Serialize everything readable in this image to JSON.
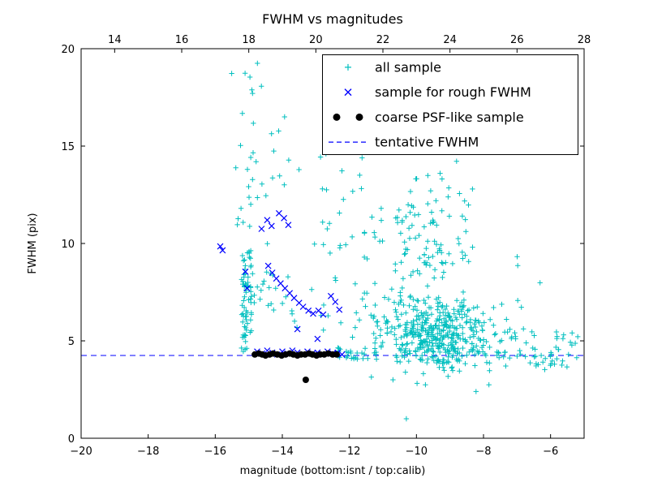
{
  "chart_data": {
    "type": "scatter",
    "title": "FWHM vs magnitudes",
    "xlabel": "magnitude (bottom:isnt / top:calib)",
    "ylabel": "FWHM (pix)",
    "xlim": [
      -20,
      -5
    ],
    "ylim": [
      0,
      20
    ],
    "grid": false,
    "legend_position": "upper right",
    "x_ticks_bottom": [
      -20,
      -18,
      -16,
      -14,
      -12,
      -10,
      -8,
      -6
    ],
    "x_tick_labels_bottom": [
      "−20",
      "−18",
      "−16",
      "−14",
      "−12",
      "−10",
      "−8",
      "−6"
    ],
    "x_ticks_top_calib": [
      14,
      16,
      18,
      20,
      22,
      24,
      26,
      28
    ],
    "x_tick_labels_top": [
      "14",
      "16",
      "18",
      "20",
      "22",
      "24",
      "26",
      "28"
    ],
    "top_axis_offset": 33,
    "y_ticks": [
      0,
      5,
      10,
      15,
      20
    ],
    "y_tick_labels": [
      "0",
      "5",
      "10",
      "15",
      "20"
    ],
    "tentative_fwhm": 4.25,
    "series": [
      {
        "name": "all sample",
        "marker": "+",
        "color": "#00bfbf",
        "clusters": [
          {
            "n": 70,
            "x": [
              -15.22,
              -14.92
            ],
            "y": [
              4.25,
              9.8
            ]
          },
          {
            "n": 26,
            "x": [
              -15.55,
              -14.6
            ],
            "y": [
              9.8,
              19.6
            ]
          },
          {
            "n": 34,
            "x": [
              -14.55,
              -12.1
            ],
            "y": [
              5.3,
              13.2
            ]
          },
          {
            "n": 10,
            "x": [
              -14.95,
              -14.35
            ],
            "y": [
              6.8,
              8.6
            ]
          },
          {
            "n": 10,
            "x": [
              -12.95,
              -11.55
            ],
            "y": [
              12.2,
              15.0
            ]
          },
          {
            "n": 8,
            "x": [
              -14.45,
              -13.5
            ],
            "y": [
              13.2,
              16.5
            ]
          },
          {
            "n": 430,
            "gauss": true,
            "cx": -9.35,
            "cy": 5.3,
            "sx": 0.85,
            "sy": 1.0,
            "clipx": [
              -11.4,
              -7.1
            ],
            "clipy": [
              3.3,
              8.8
            ]
          },
          {
            "n": 85,
            "gauss": true,
            "cx": -9.45,
            "cy": 10.0,
            "sx": 0.75,
            "sy": 2.0,
            "clipx": [
              -11.0,
              -7.8
            ],
            "clipy": [
              8.2,
              15.6
            ]
          },
          {
            "n": 55,
            "x": [
              -11.95,
              -10.3
            ],
            "y": [
              3.9,
              12.0
            ]
          },
          {
            "n": 26,
            "x": [
              -12.35,
              -11.15
            ],
            "y": [
              4.05,
              4.65
            ]
          },
          {
            "n": 55,
            "x": [
              -7.55,
              -5.15
            ],
            "y": [
              3.5,
              5.5
            ]
          },
          {
            "n": 8,
            "x": [
              -7.95,
              -6.2
            ],
            "y": [
              5.5,
              9.6
            ]
          },
          {
            "n": 7,
            "x": [
              -12.7,
              -7.4
            ],
            "y": [
              1.9,
              3.2
            ]
          }
        ],
        "points": [
          [
            -10.3,
            1.0
          ]
        ]
      },
      {
        "name": "sample for rough FWHM",
        "marker": "x",
        "color": "#0000ff",
        "points": [
          [
            -15.85,
            9.85
          ],
          [
            -15.78,
            9.65
          ],
          [
            -15.1,
            8.55
          ],
          [
            -15.05,
            7.7
          ],
          [
            -14.62,
            10.75
          ],
          [
            -14.45,
            11.2
          ],
          [
            -14.32,
            10.9
          ],
          [
            -14.1,
            11.55
          ],
          [
            -13.95,
            11.3
          ],
          [
            -13.82,
            10.95
          ],
          [
            -14.42,
            8.85
          ],
          [
            -14.3,
            8.5
          ],
          [
            -14.18,
            8.2
          ],
          [
            -14.05,
            7.95
          ],
          [
            -13.92,
            7.7
          ],
          [
            -13.78,
            7.45
          ],
          [
            -13.65,
            7.2
          ],
          [
            -13.5,
            6.95
          ],
          [
            -13.38,
            6.75
          ],
          [
            -13.22,
            6.55
          ],
          [
            -13.08,
            6.4
          ],
          [
            -12.92,
            6.55
          ],
          [
            -12.78,
            6.35
          ],
          [
            -12.55,
            7.3
          ],
          [
            -12.42,
            7.0
          ],
          [
            -12.3,
            6.6
          ],
          [
            -13.55,
            5.6
          ],
          [
            -12.95,
            5.1
          ],
          [
            -14.75,
            4.45
          ],
          [
            -14.6,
            4.35
          ],
          [
            -14.45,
            4.5
          ],
          [
            -14.3,
            4.4
          ],
          [
            -14.15,
            4.3
          ],
          [
            -14.0,
            4.45
          ],
          [
            -13.85,
            4.35
          ],
          [
            -13.7,
            4.5
          ],
          [
            -13.55,
            4.4
          ],
          [
            -13.4,
            4.3
          ],
          [
            -13.25,
            4.45
          ],
          [
            -13.1,
            4.35
          ],
          [
            -12.95,
            4.4
          ],
          [
            -12.8,
            4.3
          ],
          [
            -12.65,
            4.45
          ],
          [
            -12.5,
            4.35
          ],
          [
            -12.35,
            4.4
          ],
          [
            -12.22,
            4.3
          ]
        ]
      },
      {
        "name": "coarse PSF-like sample",
        "marker": "o",
        "color": "#000000",
        "points": [
          [
            -14.82,
            4.3
          ],
          [
            -14.7,
            4.35
          ],
          [
            -14.6,
            4.3
          ],
          [
            -14.5,
            4.25
          ],
          [
            -14.38,
            4.3
          ],
          [
            -14.27,
            4.35
          ],
          [
            -14.15,
            4.3
          ],
          [
            -14.02,
            4.25
          ],
          [
            -13.9,
            4.3
          ],
          [
            -13.78,
            4.35
          ],
          [
            -13.67,
            4.3
          ],
          [
            -13.55,
            4.25
          ],
          [
            -13.44,
            4.3
          ],
          [
            -13.32,
            4.3
          ],
          [
            -13.2,
            4.35
          ],
          [
            -13.1,
            4.3
          ],
          [
            -12.98,
            4.25
          ],
          [
            -12.87,
            4.3
          ],
          [
            -12.75,
            4.3
          ],
          [
            -12.63,
            4.35
          ],
          [
            -12.5,
            4.3
          ],
          [
            -12.38,
            4.3
          ],
          [
            -13.3,
            3.0
          ]
        ]
      },
      {
        "name": "tentative FWHM",
        "marker": "dashed-line",
        "color": "#0000ff",
        "y": 4.25
      }
    ]
  }
}
